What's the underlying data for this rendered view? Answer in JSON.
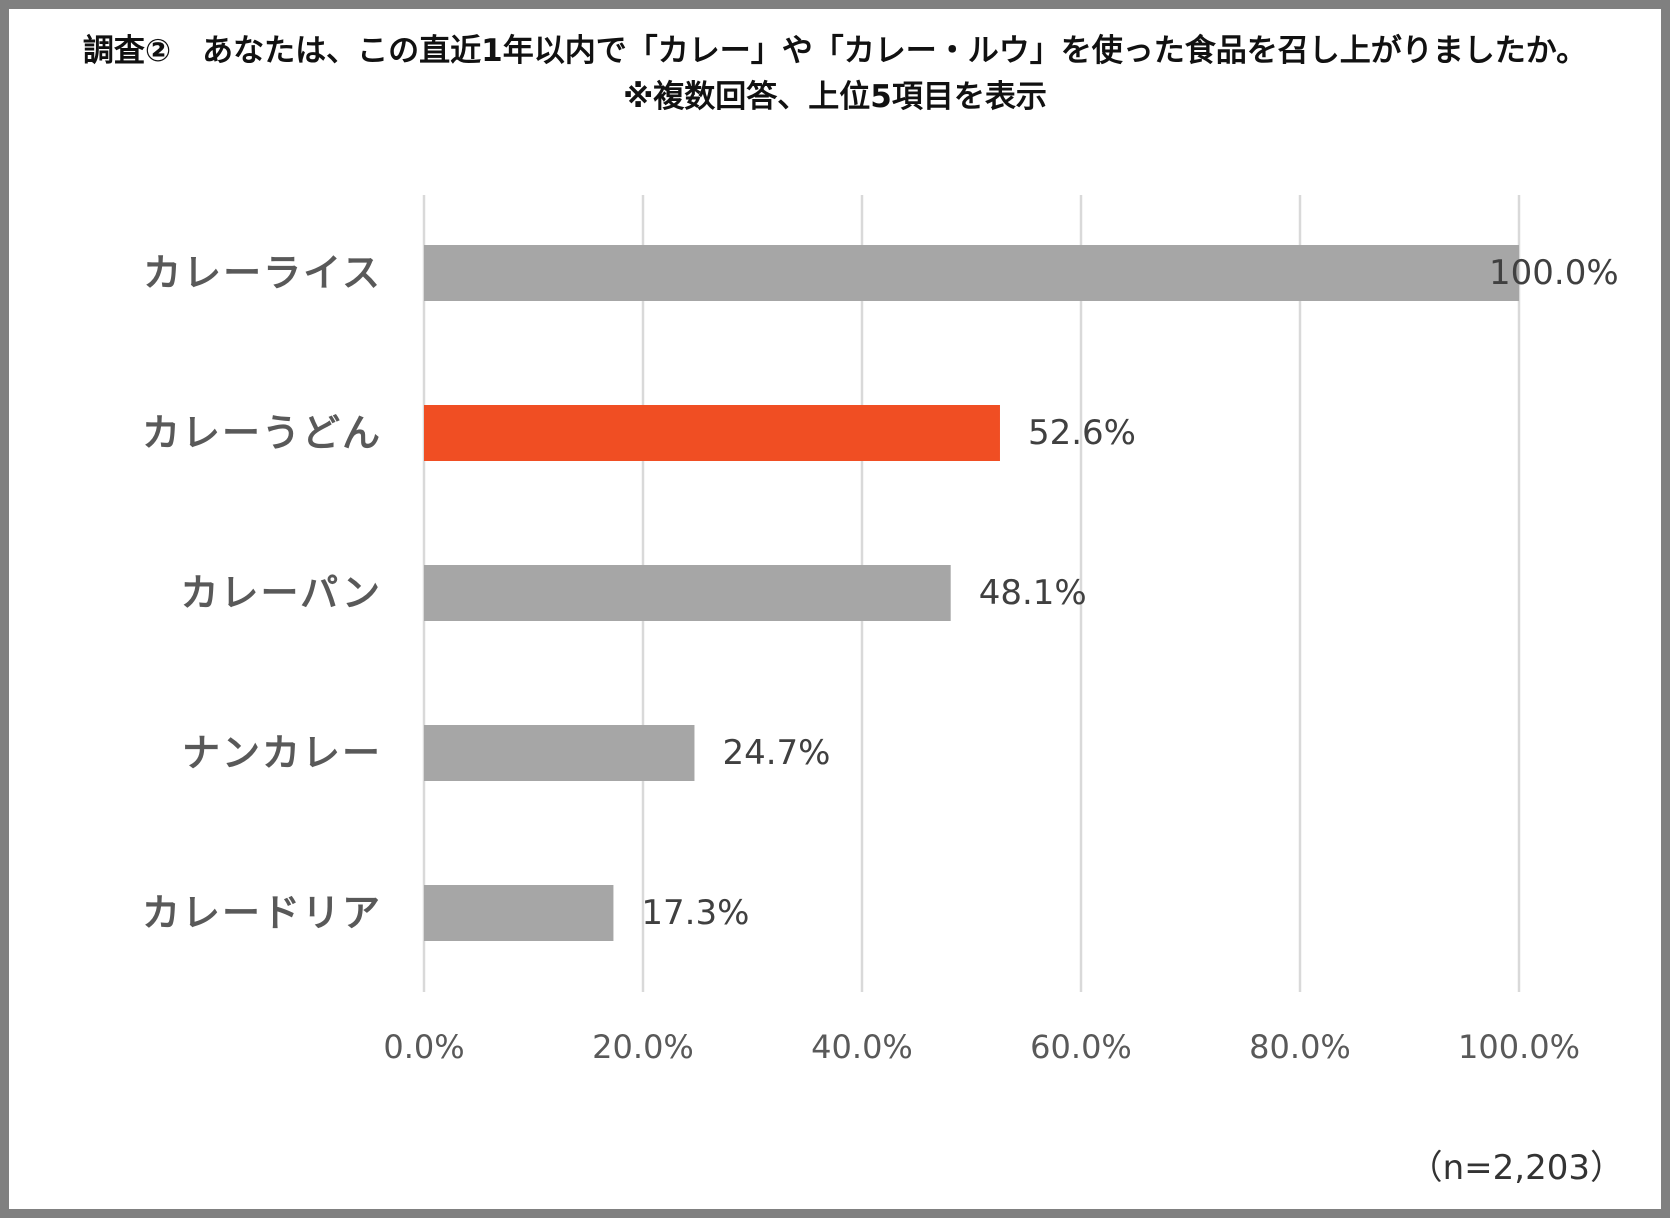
{
  "chart_data": {
    "type": "bar",
    "orientation": "horizontal",
    "title": "調査②　あなたは、この直近1年以内で「カレー」や「カレー・ルウ」を使った食品を召し上がりましたか。",
    "subtitle": "※複数回答、上位5項目を表示",
    "categories": [
      "カレーライス",
      "カレーうどん",
      "カレーパン",
      "ナンカレー",
      "カレードリア"
    ],
    "values": [
      100.0,
      52.6,
      48.1,
      24.7,
      17.3
    ],
    "value_labels": [
      "100.0%",
      "52.6%",
      "48.1%",
      "24.7%",
      "17.3%"
    ],
    "xlim": [
      0,
      100
    ],
    "ticks": [
      0,
      20,
      40,
      60,
      80,
      100
    ],
    "tick_labels": [
      "0.0%",
      "20.0%",
      "40.0%",
      "60.0%",
      "80.0%",
      "100.0%"
    ],
    "grid": true,
    "colors": {
      "default": "#a6a6a6",
      "highlight": "#f04e23",
      "grid": "#d9d9d9"
    },
    "highlight_index": 1,
    "note": "（n=2,203）"
  }
}
